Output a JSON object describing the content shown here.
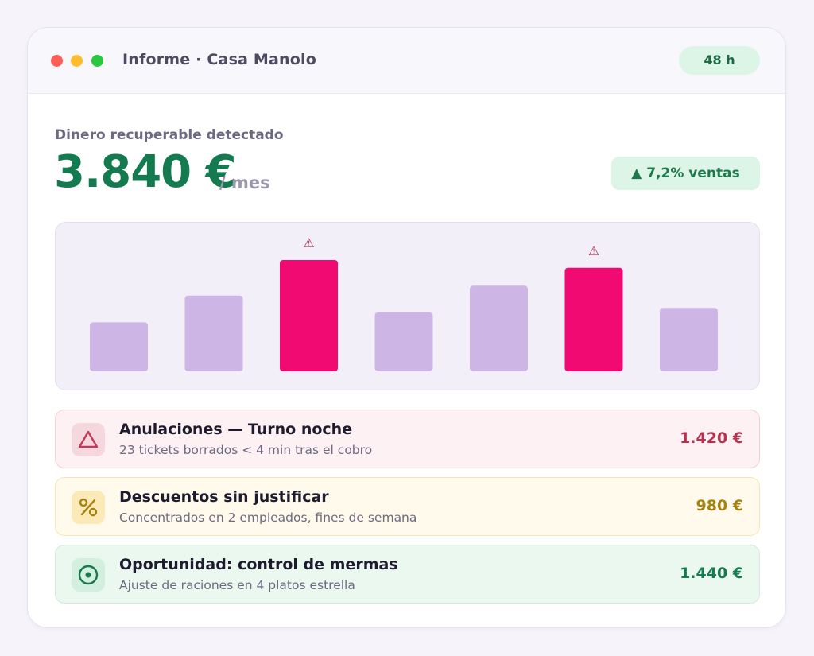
{
  "window": {
    "title": "Informe · Casa Manolo",
    "period_badge": "48 h"
  },
  "kpi": {
    "label": "Dinero recuperable detectado",
    "value": "3.840 €",
    "unit": "/ mes",
    "trend": "▲ 7,2% ventas"
  },
  "colors": {
    "accent_green": "#147a4f",
    "bar_normal": "#cdb6e6",
    "bar_alert": "#f20a73",
    "warning_mark": "#b2354f"
  },
  "chart_data": {
    "type": "bar",
    "categories": [
      "",
      "",
      "",
      "",
      "",
      "",
      ""
    ],
    "values": [
      0.44,
      0.68,
      1.0,
      0.53,
      0.77,
      0.93,
      0.57
    ],
    "flagged": [
      false,
      false,
      true,
      false,
      false,
      true,
      false
    ],
    "flag_icon": "⚠",
    "title": "",
    "xlabel": "",
    "ylabel": "",
    "grid": false,
    "legend": "none"
  },
  "alerts": [
    {
      "tone": "red",
      "icon": "triangle-icon",
      "title": "Anulaciones — Turno noche",
      "subtitle": "23 tickets borrados < 4 min tras el cobro",
      "amount": "1.420 €"
    },
    {
      "tone": "yellow",
      "icon": "percent-icon",
      "title": "Descuentos sin justificar",
      "subtitle": "Concentrados en 2 empleados, fines de semana",
      "amount": "980 €"
    },
    {
      "tone": "green",
      "icon": "target-icon",
      "title": "Oportunidad: control de mermas",
      "subtitle": "Ajuste de raciones en 4 platos estrella",
      "amount": "1.440 €"
    }
  ]
}
